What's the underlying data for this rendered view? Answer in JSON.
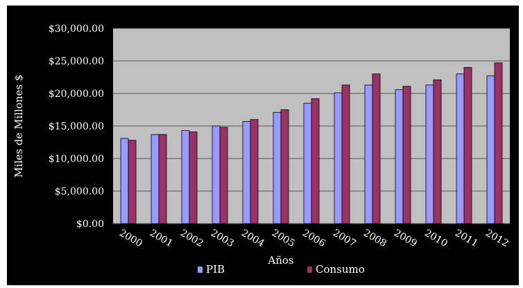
{
  "chart_data": {
    "type": "bar",
    "categories": [
      "2000",
      "2001",
      "2002",
      "2003",
      "2004",
      "2005",
      "2006",
      "2007",
      "2008",
      "2009",
      "2010",
      "2011",
      "2012"
    ],
    "series": [
      {
        "name": "PIB",
        "values": [
          13100,
          13700,
          14300,
          15000,
          15700,
          17100,
          18500,
          20100,
          21300,
          20600,
          21300,
          23000,
          22700
        ],
        "color": "#9999ff"
      },
      {
        "name": "Consumo",
        "values": [
          12800,
          13700,
          14100,
          14800,
          16000,
          17500,
          19200,
          21300,
          23000,
          21100,
          22100,
          24000,
          24700
        ],
        "color": "#993366"
      }
    ],
    "y_ticks": [
      "$0.00",
      "$5,000.00",
      "$10,000.00",
      "$15,000.00",
      "$20,000.00",
      "$25,000.00",
      "$30,000.00"
    ],
    "ylim": [
      0,
      30000
    ],
    "ylabel": "Miles de Millones $",
    "xlabel": "Años",
    "grid": true,
    "legend_position": "bottom",
    "plot_background": "#c0c0c0",
    "frame_background": "#000000",
    "text_color": "#ffffff"
  }
}
